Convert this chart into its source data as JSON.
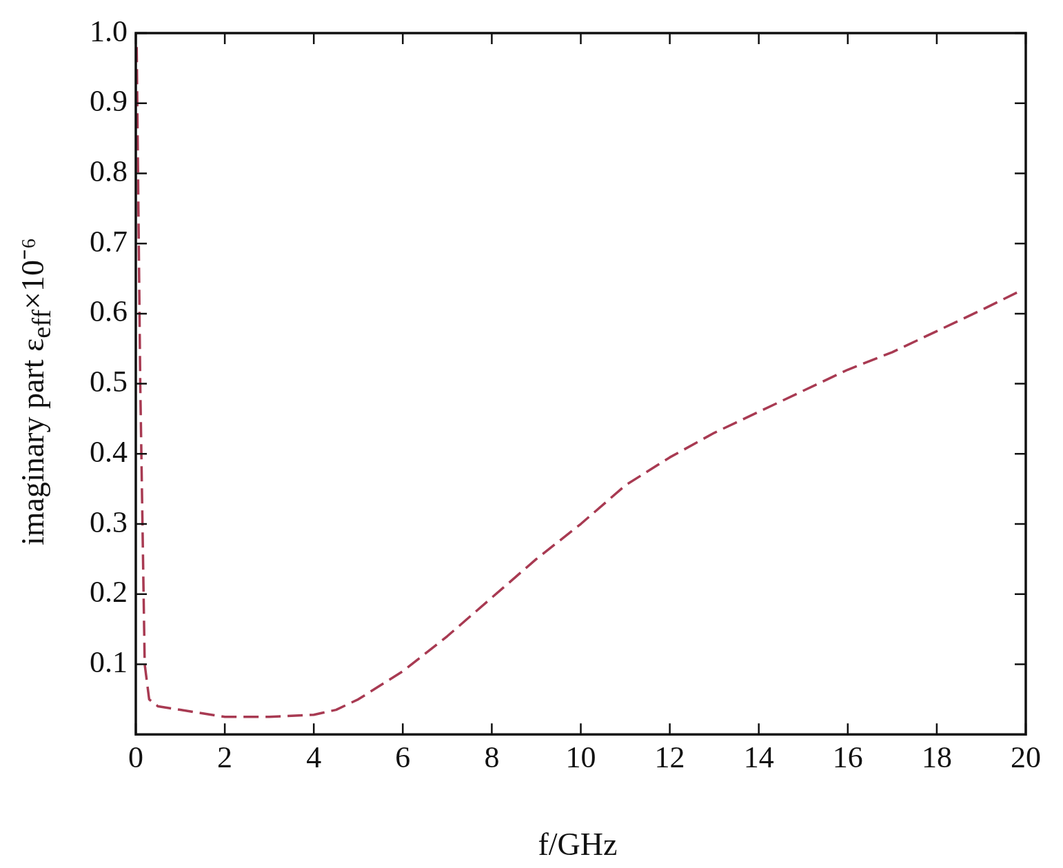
{
  "chart_data": {
    "type": "line",
    "xlabel": "f/GHz",
    "ylabel": "imaginary part ε$_{eff}$×10⁻⁶",
    "line_style": "dashed",
    "marker": "none",
    "x": [
      0.02,
      0.1,
      0.2,
      0.3,
      0.5,
      1,
      2,
      3,
      4,
      4.5,
      5,
      6,
      7,
      8,
      9,
      10,
      11,
      12,
      13,
      14,
      15,
      16,
      17,
      18,
      19,
      19.8
    ],
    "series": [
      {
        "color": "#a83a52",
        "values": [
          0.98,
          0.5,
          0.1,
          0.05,
          0.04,
          0.035,
          0.025,
          0.025,
          0.028,
          0.035,
          0.05,
          0.09,
          0.14,
          0.195,
          0.25,
          0.3,
          0.355,
          0.395,
          0.43,
          0.46,
          0.49,
          0.52,
          0.545,
          0.575,
          0.605,
          0.63
        ]
      }
    ],
    "xlim": [
      0,
      20
    ],
    "xticks": [
      0,
      2,
      4,
      6,
      8,
      10,
      12,
      14,
      16,
      18,
      20
    ],
    "ylim": [
      0,
      1
    ],
    "yticks": [
      0.1,
      0.2,
      0.3,
      0.4,
      0.5,
      0.6,
      0.7,
      0.8,
      0.9,
      {
        "value": 1,
        "label": "1.0"
      }
    ]
  }
}
